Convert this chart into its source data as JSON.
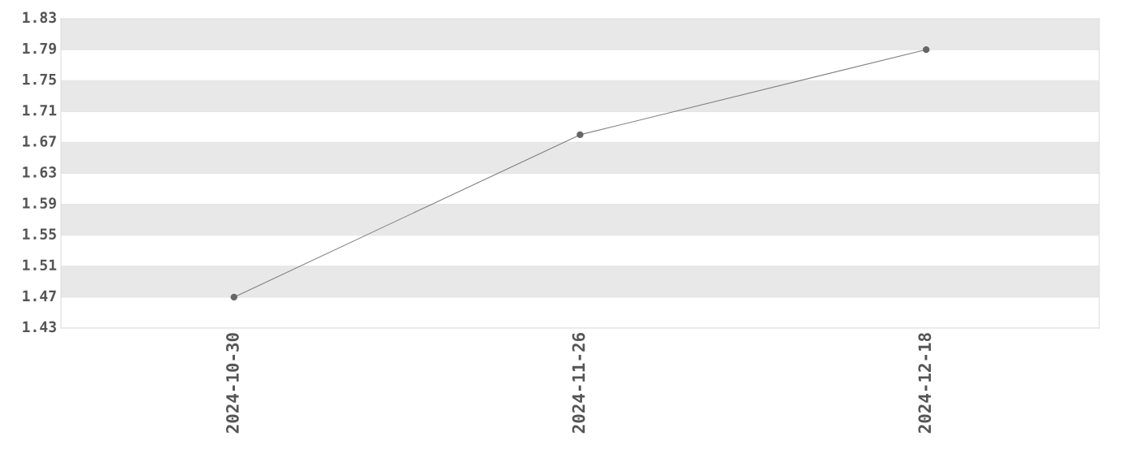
{
  "chart_data": {
    "type": "line",
    "categories": [
      "2024-10-30",
      "2024-11-26",
      "2024-12-18"
    ],
    "series": [
      {
        "color": "#808080",
        "values": [
          1.47,
          1.68,
          1.79
        ]
      }
    ],
    "ylim": [
      1.43,
      1.83
    ],
    "yticks": [
      1.43,
      1.47,
      1.51,
      1.55,
      1.59,
      1.63,
      1.67,
      1.71,
      1.75,
      1.79,
      1.83
    ],
    "grid": "y",
    "marker": "circle",
    "line_style": "solid"
  }
}
